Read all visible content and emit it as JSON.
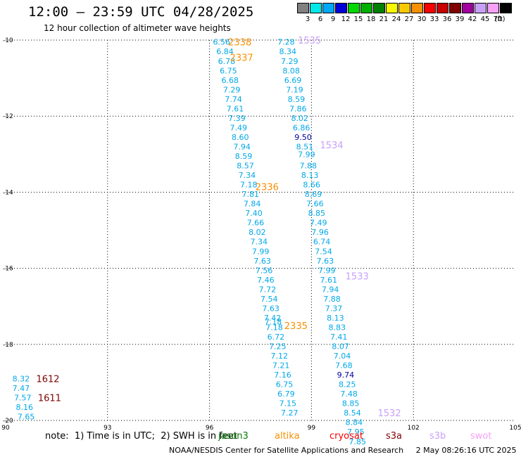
{
  "header": {
    "title": "12:00 – 23:59 UTC 04/28/2025",
    "subtitle": "12 hour collection of altimeter wave heights"
  },
  "legend": {
    "unit": "(ft)",
    "items": [
      {
        "label": "3",
        "color": "#808080"
      },
      {
        "label": "6",
        "color": "#00e8e8"
      },
      {
        "label": "9",
        "color": "#00a8f8"
      },
      {
        "label": "12",
        "color": "#0000d8"
      },
      {
        "label": "15",
        "color": "#00d800"
      },
      {
        "label": "18",
        "color": "#00b000"
      },
      {
        "label": "21",
        "color": "#008000"
      },
      {
        "label": "24",
        "color": "#f8f800"
      },
      {
        "label": "27",
        "color": "#f8c800"
      },
      {
        "label": "30",
        "color": "#f89000"
      },
      {
        "label": "33",
        "color": "#f80000"
      },
      {
        "label": "36",
        "color": "#c80000"
      },
      {
        "label": "39",
        "color": "#800000"
      },
      {
        "label": "42",
        "color": "#a000a0"
      },
      {
        "label": "45",
        "color": "#c8a0f8"
      },
      {
        "label": "70",
        "color": "#f8a0f8"
      },
      {
        "label": "",
        "color": "#000000"
      }
    ]
  },
  "colors": {
    "jason3": "#008000",
    "altika": "#f89000",
    "cryosat": "#f80000",
    "s3a": "#800000",
    "s3b": "#c8a0f8",
    "swot": "#f8a0f8",
    "swh_low": "#00a8e8",
    "swh_high": "#0000a0"
  },
  "footer": {
    "note": "note:  1) Time is in UTC;  2) SWH is in feet",
    "missions": [
      {
        "label": "jason3",
        "color": "#008000"
      },
      {
        "label": "altika",
        "color": "#f89000"
      },
      {
        "label": "cryosat",
        "color": "#f80000"
      },
      {
        "label": "s3a",
        "color": "#800000"
      },
      {
        "label": "s3b",
        "color": "#c8a0f8"
      },
      {
        "label": "swot",
        "color": "#f8a0f8"
      }
    ],
    "credits": "NOAA/NESDIS Center for Satellite Applications and Research     2 May 08:26:16 UTC 2025"
  },
  "chart_data": {
    "type": "scatter",
    "title": "12:00 – 23:59 UTC 04/28/2025",
    "subtitle": "12 hour collection of altimeter wave heights",
    "xlim": [
      90,
      105
    ],
    "ylim": [
      -20,
      -10
    ],
    "x_ticks": [
      "90",
      "93",
      "96",
      "99",
      "102",
      "105"
    ],
    "y_ticks": [
      "-10",
      "-12",
      "-14",
      "-16",
      "-18",
      "-20"
    ],
    "grid": true,
    "series": [
      {
        "name": "altika",
        "values": [
          {
            "x": 96.1,
            "y": -10.05,
            "v": "6.56"
          },
          {
            "x": 96.2,
            "y": -10.3,
            "v": "6.84"
          },
          {
            "x": 96.25,
            "y": -10.55,
            "v": "6.78"
          },
          {
            "x": 96.3,
            "y": -10.8,
            "v": "6.75"
          },
          {
            "x": 96.35,
            "y": -11.05,
            "v": "6.68"
          },
          {
            "x": 96.4,
            "y": -11.3,
            "v": "7.29"
          },
          {
            "x": 96.45,
            "y": -11.55,
            "v": "7.74"
          },
          {
            "x": 96.5,
            "y": -11.8,
            "v": "7.61"
          },
          {
            "x": 96.55,
            "y": -12.05,
            "v": "7.39"
          },
          {
            "x": 96.6,
            "y": -12.3,
            "v": "7.49"
          },
          {
            "x": 96.65,
            "y": -12.55,
            "v": "8.60"
          },
          {
            "x": 96.7,
            "y": -12.8,
            "v": "7.94"
          },
          {
            "x": 96.75,
            "y": -13.05,
            "v": "8.59"
          },
          {
            "x": 96.8,
            "y": -13.3,
            "v": "8.57"
          },
          {
            "x": 96.85,
            "y": -13.55,
            "v": "7.34"
          },
          {
            "x": 96.9,
            "y": -13.8,
            "v": "7.18"
          },
          {
            "x": 96.95,
            "y": -14.05,
            "v": "7.81"
          },
          {
            "x": 97.0,
            "y": -14.3,
            "v": "7.84"
          },
          {
            "x": 97.05,
            "y": -14.55,
            "v": "7.40"
          },
          {
            "x": 97.1,
            "y": -14.8,
            "v": "7.66"
          },
          {
            "x": 97.15,
            "y": -15.05,
            "v": "8.02"
          },
          {
            "x": 97.2,
            "y": -15.3,
            "v": "7.34"
          },
          {
            "x": 97.25,
            "y": -15.55,
            "v": "7.99"
          },
          {
            "x": 97.3,
            "y": -15.8,
            "v": "7.63"
          },
          {
            "x": 97.35,
            "y": -16.05,
            "v": "7.56"
          },
          {
            "x": 97.4,
            "y": -16.3,
            "v": "7.46"
          },
          {
            "x": 97.45,
            "y": -16.55,
            "v": "7.72"
          },
          {
            "x": 97.5,
            "y": -16.8,
            "v": "7.54"
          },
          {
            "x": 97.55,
            "y": -17.05,
            "v": "7.63"
          },
          {
            "x": 97.6,
            "y": -17.3,
            "v": "7.42"
          },
          {
            "x": 97.62,
            "y": -17.4,
            "v": "7.18"
          },
          {
            "x": 97.65,
            "y": -17.55,
            "v": "7.18"
          },
          {
            "x": 97.7,
            "y": -17.8,
            "v": "6.72"
          },
          {
            "x": 97.75,
            "y": -18.05,
            "v": "7.25"
          },
          {
            "x": 97.8,
            "y": -18.3,
            "v": "7.12"
          },
          {
            "x": 97.85,
            "y": -18.55,
            "v": "7.21"
          },
          {
            "x": 97.9,
            "y": -18.8,
            "v": "7.16"
          },
          {
            "x": 97.95,
            "y": -19.05,
            "v": "6.75"
          },
          {
            "x": 98.0,
            "y": -19.3,
            "v": "6.79"
          },
          {
            "x": 98.05,
            "y": -19.55,
            "v": "7.15"
          },
          {
            "x": 98.1,
            "y": -19.8,
            "v": "7.27"
          }
        ]
      },
      {
        "name": "s3b",
        "values": [
          {
            "x": 98.0,
            "y": -10.05,
            "v": "7.28"
          },
          {
            "x": 98.05,
            "y": -10.3,
            "v": "8.34"
          },
          {
            "x": 98.1,
            "y": -10.55,
            "v": "7.29"
          },
          {
            "x": 98.15,
            "y": -10.8,
            "v": "8.08"
          },
          {
            "x": 98.2,
            "y": -11.05,
            "v": "6.69"
          },
          {
            "x": 98.25,
            "y": -11.3,
            "v": "7.19"
          },
          {
            "x": 98.3,
            "y": -11.55,
            "v": "8.59"
          },
          {
            "x": 98.35,
            "y": -11.8,
            "v": "7.86"
          },
          {
            "x": 98.4,
            "y": -12.05,
            "v": "8.02"
          },
          {
            "x": 98.45,
            "y": -12.3,
            "v": "6.86"
          },
          {
            "x": 98.5,
            "y": -12.55,
            "v": "9.50"
          },
          {
            "x": 98.55,
            "y": -12.8,
            "v": "8.51"
          },
          {
            "x": 98.6,
            "y": -13.0,
            "v": "7.99"
          },
          {
            "x": 98.65,
            "y": -13.3,
            "v": "7.88"
          },
          {
            "x": 98.7,
            "y": -13.55,
            "v": "8.13"
          },
          {
            "x": 98.75,
            "y": -13.8,
            "v": "8.66"
          },
          {
            "x": 98.8,
            "y": -14.05,
            "v": "8.69"
          },
          {
            "x": 98.85,
            "y": -14.3,
            "v": "7.66"
          },
          {
            "x": 98.9,
            "y": -14.55,
            "v": "8.85"
          },
          {
            "x": 98.95,
            "y": -14.8,
            "v": "7.49"
          },
          {
            "x": 99.0,
            "y": -15.05,
            "v": "7.96"
          },
          {
            "x": 99.05,
            "y": -15.3,
            "v": "6.74"
          },
          {
            "x": 99.1,
            "y": -15.55,
            "v": "7.54"
          },
          {
            "x": 99.15,
            "y": -15.8,
            "v": "7.63"
          },
          {
            "x": 99.2,
            "y": -16.05,
            "v": "7.99"
          },
          {
            "x": 99.25,
            "y": -16.3,
            "v": "7.61"
          },
          {
            "x": 99.3,
            "y": -16.55,
            "v": "7.94"
          },
          {
            "x": 99.35,
            "y": -16.8,
            "v": "7.88"
          },
          {
            "x": 99.4,
            "y": -17.05,
            "v": "7.37"
          },
          {
            "x": 99.45,
            "y": -17.3,
            "v": "8.13"
          },
          {
            "x": 99.5,
            "y": -17.55,
            "v": "8.83"
          },
          {
            "x": 99.55,
            "y": -17.8,
            "v": "7.41"
          },
          {
            "x": 99.6,
            "y": -18.05,
            "v": "8.07"
          },
          {
            "x": 99.65,
            "y": -18.3,
            "v": "7.04"
          },
          {
            "x": 99.7,
            "y": -18.55,
            "v": "7.68"
          },
          {
            "x": 99.75,
            "y": -18.8,
            "v": "9.74"
          },
          {
            "x": 99.8,
            "y": -19.05,
            "v": "8.25"
          },
          {
            "x": 99.85,
            "y": -19.3,
            "v": "7.48"
          },
          {
            "x": 99.9,
            "y": -19.55,
            "v": "8.85"
          },
          {
            "x": 99.95,
            "y": -19.8,
            "v": "8.54"
          },
          {
            "x": 100.0,
            "y": -20.05,
            "v": "8.84"
          },
          {
            "x": 100.05,
            "y": -20.3,
            "v": "7.95"
          },
          {
            "x": 100.1,
            "y": -20.55,
            "v": "7.85"
          }
        ]
      },
      {
        "name": "s3a",
        "values": [
          {
            "x": 90.2,
            "y": -18.9,
            "v": "8.32"
          },
          {
            "x": 90.2,
            "y": -19.15,
            "v": "7.47"
          },
          {
            "x": 90.25,
            "y": -19.4,
            "v": "7.57"
          },
          {
            "x": 90.3,
            "y": -19.65,
            "v": "8.16"
          },
          {
            "x": 90.35,
            "y": -19.9,
            "v": "7.65"
          }
        ]
      }
    ],
    "time_labels": [
      {
        "text": "2338",
        "mission": "altika",
        "x": 96.55,
        "y": -10.05
      },
      {
        "text": "2337",
        "mission": "altika",
        "x": 96.6,
        "y": -10.45
      },
      {
        "text": "2336",
        "mission": "altika",
        "x": 97.35,
        "y": -13.85
      },
      {
        "text": "2335",
        "mission": "altika",
        "x": 98.2,
        "y": -17.5
      },
      {
        "text": "1535",
        "mission": "s3b",
        "x": 98.6,
        "y": -10.0
      },
      {
        "text": "1534",
        "mission": "s3b",
        "x": 99.25,
        "y": -12.75
      },
      {
        "text": "1533",
        "mission": "s3b",
        "x": 100.0,
        "y": -16.2
      },
      {
        "text": "1532",
        "mission": "s3b",
        "x": 100.95,
        "y": -19.8
      },
      {
        "text": "1612",
        "mission": "s3a",
        "x": 90.9,
        "y": -18.9
      },
      {
        "text": "1611",
        "mission": "s3a",
        "x": 90.95,
        "y": -19.4
      }
    ]
  }
}
